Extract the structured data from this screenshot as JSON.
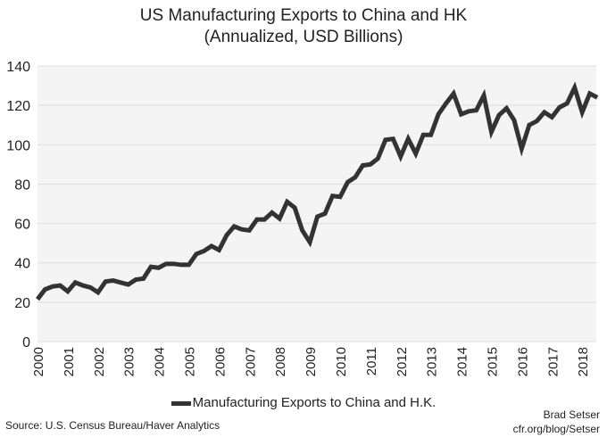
{
  "chart_data": {
    "type": "line",
    "title": [
      "US Manufacturing Exports to China and HK",
      "(Annualized, USD Billions)"
    ],
    "xlabel": "",
    "ylabel": "",
    "ylim": [
      0,
      140
    ],
    "xlim": [
      2000,
      2018.6
    ],
    "yticks": [
      0,
      20,
      40,
      60,
      80,
      100,
      120,
      140
    ],
    "xticks": [
      "2000",
      "2001",
      "2002",
      "2003",
      "2004",
      "2005",
      "2006",
      "2007",
      "2008",
      "2009",
      "2010",
      "2011",
      "2012",
      "2013",
      "2014",
      "2015",
      "2016",
      "2017",
      "2018"
    ],
    "grid": true,
    "legend_position": "bottom",
    "line_color": "#333333",
    "series": [
      {
        "name": "Manufacturing Exports to China and H.K.",
        "x": [
          2000,
          2000.25,
          2000.5,
          2000.75,
          2001,
          2001.25,
          2001.5,
          2001.75,
          2002,
          2002.25,
          2002.5,
          2002.75,
          2003,
          2003.25,
          2003.5,
          2003.75,
          2004,
          2004.25,
          2004.5,
          2004.75,
          2005,
          2005.25,
          2005.5,
          2005.75,
          2006,
          2006.25,
          2006.5,
          2006.75,
          2007,
          2007.25,
          2007.5,
          2007.75,
          2008,
          2008.25,
          2008.5,
          2008.75,
          2009,
          2009.25,
          2009.5,
          2009.75,
          2010,
          2010.25,
          2010.5,
          2010.75,
          2011,
          2011.25,
          2011.5,
          2011.75,
          2012,
          2012.25,
          2012.5,
          2012.75,
          2013,
          2013.25,
          2013.5,
          2013.75,
          2014,
          2014.25,
          2014.5,
          2014.75,
          2015,
          2015.25,
          2015.5,
          2015.75,
          2016,
          2016.25,
          2016.5,
          2016.75,
          2017,
          2017.25,
          2017.5,
          2017.75,
          2018,
          2018.25,
          2018.5
        ],
        "values": [
          21.5,
          26.5,
          28,
          28.5,
          25.5,
          30,
          28.5,
          27.5,
          25,
          30.5,
          31,
          30,
          29,
          31.5,
          32,
          38,
          37.5,
          39.5,
          39.5,
          39,
          39,
          44.5,
          46,
          48.5,
          46.5,
          54,
          58.5,
          57,
          56.5,
          62,
          62,
          65.5,
          62.5,
          71,
          68,
          56.5,
          50.5,
          63.5,
          65,
          74,
          73.5,
          81,
          83.5,
          89.5,
          90,
          93,
          102.5,
          103,
          94,
          103,
          95.5,
          105,
          105,
          115.5,
          121,
          126,
          115.5,
          117,
          117.5,
          125,
          106.5,
          115,
          118.5,
          112.5,
          98,
          110,
          112,
          116.5,
          114,
          119,
          121,
          129,
          116.5,
          126,
          124
        ]
      }
    ],
    "source": "Source: U.S. Census Bureau/Haver Analytics",
    "credit": [
      "Brad Setser",
      "cfr.org/blog/Setser"
    ]
  }
}
